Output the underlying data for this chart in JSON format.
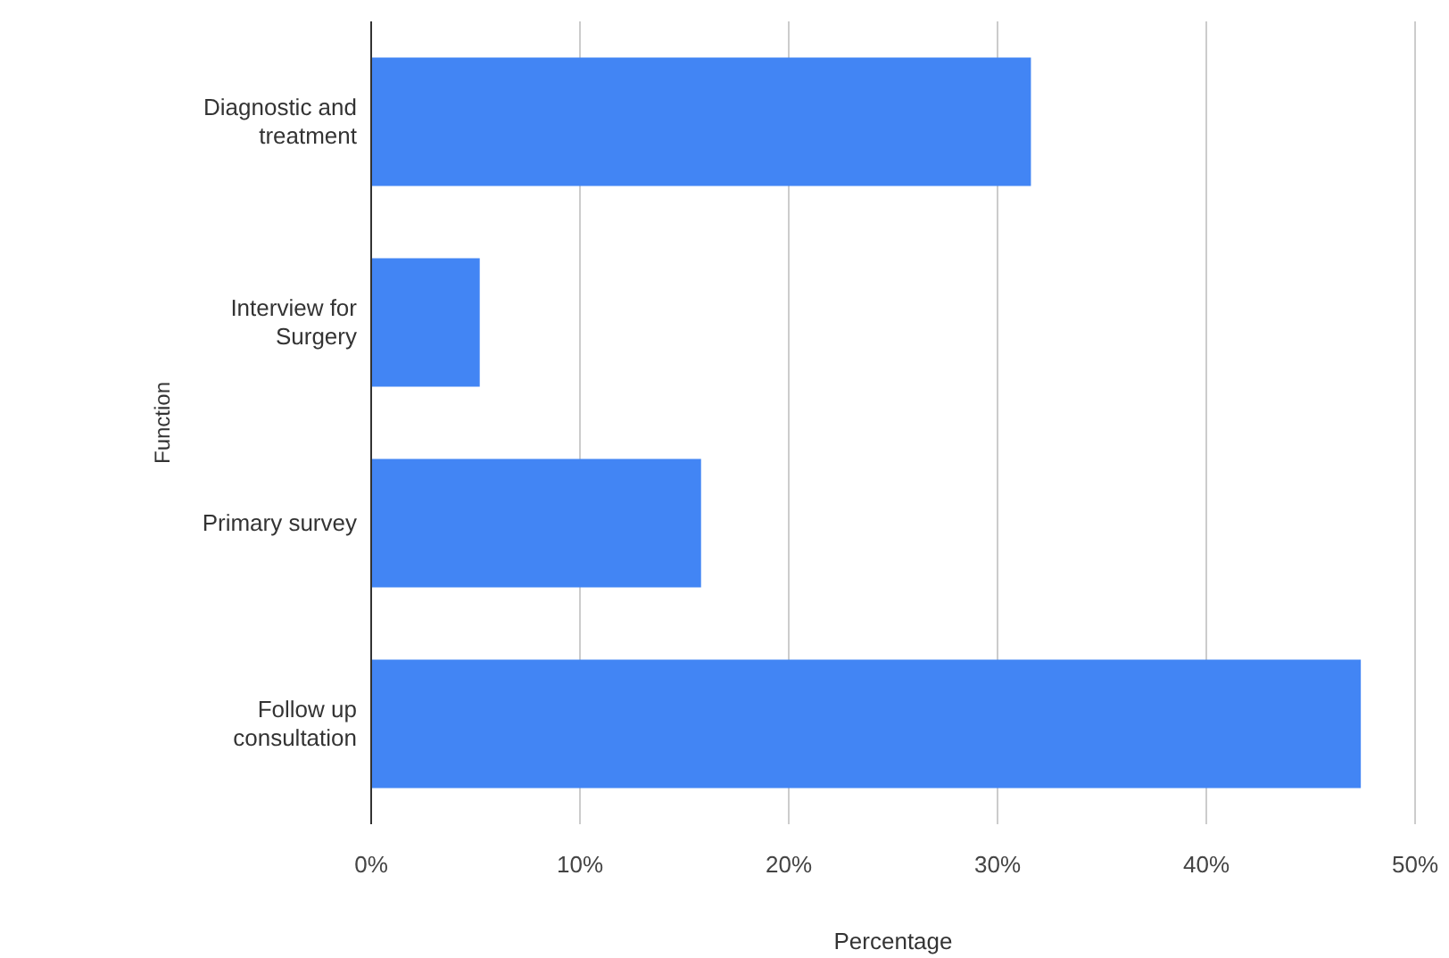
{
  "chart_data": {
    "type": "bar",
    "orientation": "horizontal",
    "xlabel": "Percentage",
    "ylabel": "Function",
    "categories": [
      "Diagnostic and treatment",
      "Interview for Surgery",
      "Primary survey",
      "Follow up consultation"
    ],
    "values": [
      31.6,
      5.2,
      15.8,
      47.4
    ],
    "color": "#4285f4",
    "xlim": [
      0,
      50
    ],
    "xticks": [
      {
        "value": 0,
        "label": "0%"
      },
      {
        "value": 10,
        "label": "10%"
      },
      {
        "value": 20,
        "label": "20%"
      },
      {
        "value": 30,
        "label": "30%"
      },
      {
        "value": 40,
        "label": "40%"
      },
      {
        "value": 50,
        "label": "50%"
      }
    ],
    "grid": "x"
  }
}
